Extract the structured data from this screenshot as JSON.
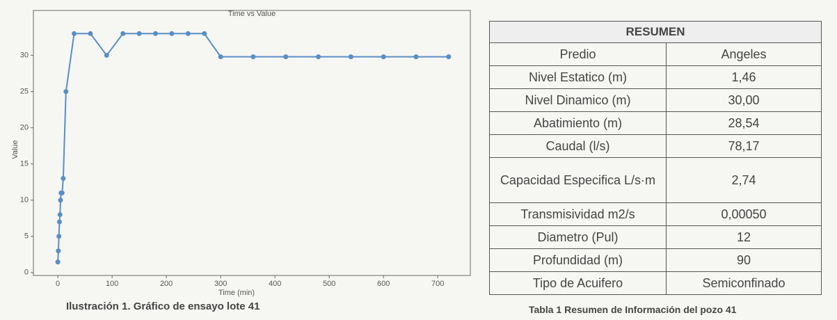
{
  "chart_data": {
    "type": "line",
    "title": "Time vs Value",
    "x_label": "Time (min)",
    "y_label": "Value",
    "x": [
      0,
      1,
      2,
      3,
      4,
      5,
      6,
      8,
      10,
      15,
      30,
      60,
      90,
      120,
      150,
      180,
      210,
      240,
      270,
      300,
      360,
      420,
      480,
      540,
      600,
      660,
      720
    ],
    "values": [
      1.46,
      3,
      5,
      7,
      8,
      10,
      11,
      11,
      13,
      25,
      33,
      33,
      30,
      33,
      33,
      33,
      33,
      33,
      33,
      29.8,
      29.8,
      29.8,
      29.8,
      29.8,
      29.8,
      29.8,
      29.8
    ],
    "color": "#5a8ec6",
    "xlim": [
      -45,
      760
    ],
    "xticks": [
      0,
      100,
      200,
      300,
      400,
      500,
      600,
      700
    ],
    "ylim": [
      -0.4,
      36.2
    ],
    "yticks": [
      0,
      5,
      10,
      15,
      20,
      25,
      30
    ],
    "grid": false
  },
  "chart_caption": "Ilustración 1. Gráfico de ensayo lote 41",
  "table": {
    "title": "RESUMEN",
    "rows": [
      [
        "Predio",
        "Angeles"
      ],
      [
        "Nivel Estatico (m)",
        "1,46"
      ],
      [
        "Nivel Dinamico  (m)",
        "30,00"
      ],
      [
        "Abatimiento  (m)",
        "28,54"
      ],
      [
        "Caudal (l/s)",
        "78,17"
      ],
      [
        "Capacidad Especifica L/s·m",
        "2,74"
      ],
      [
        "Transmisividad m2/s",
        "0,00050"
      ],
      [
        "Diametro (Pul)",
        "12"
      ],
      [
        "Profundidad  (m)",
        "90"
      ],
      [
        "Tipo de Acuifero",
        "Semiconfinado"
      ]
    ]
  },
  "table_caption": "Tabla 1 Resumen de Información del pozo 41"
}
